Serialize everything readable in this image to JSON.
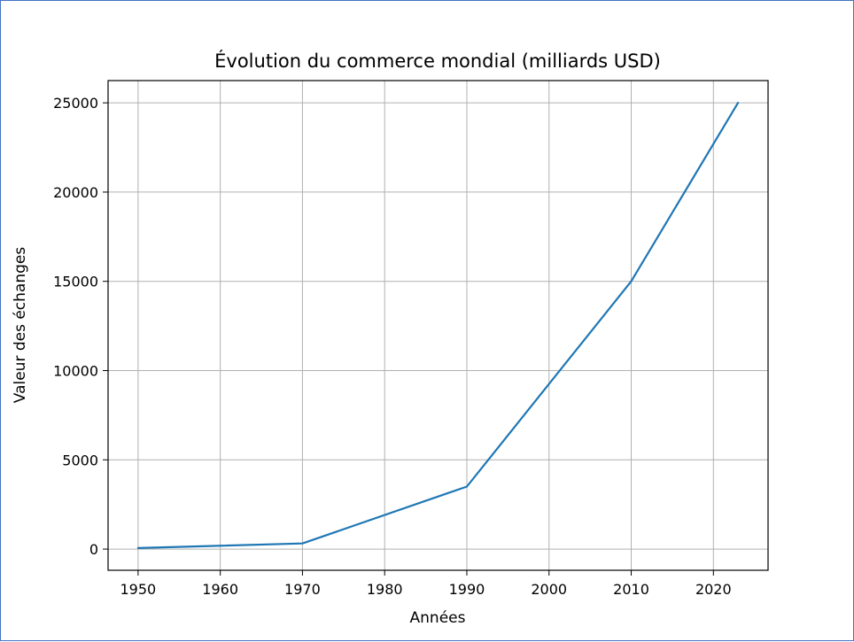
{
  "chart_data": {
    "type": "line",
    "title": "Évolution du commerce mondial (milliards USD)",
    "xlabel": "Années",
    "ylabel": "Valeur des échanges",
    "x": [
      1950,
      1970,
      1990,
      2010,
      2023
    ],
    "series": [
      {
        "values": [
          60,
          315,
          3500,
          15000,
          25000
        ],
        "color": "#1f77b4"
      }
    ],
    "xlim": [
      1946.35,
      2026.65
    ],
    "ylim": [
      -1187,
      26247
    ],
    "xticks": [
      1950,
      1960,
      1970,
      1980,
      1990,
      2000,
      2010,
      2020
    ],
    "yticks": [
      0,
      5000,
      10000,
      15000,
      20000,
      25000
    ],
    "grid": true
  }
}
